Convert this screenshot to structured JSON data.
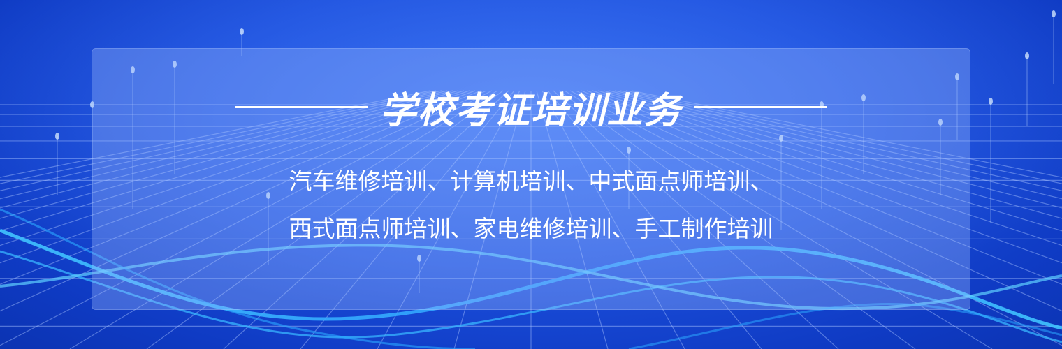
{
  "banner": {
    "headline": "学校考证培训业务",
    "services_line1": "汽车维修培训、计算机培训、中式面点师培训、",
    "services_line2": "西式面点师培训、家电维修培训、手工制作培训"
  },
  "colors": {
    "background": "#1c4fdc",
    "panel": "#a0beff",
    "text": "#ffffff",
    "wave": "#38b6ff",
    "grid": "#a9c4ff"
  }
}
